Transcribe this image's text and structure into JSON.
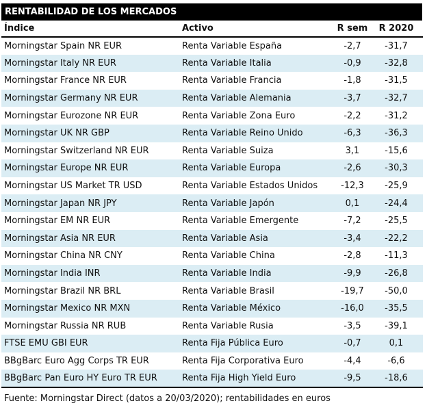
{
  "title": "RENTABILIDAD DE LOS MERCADOS",
  "footnote": "Fuente: Morningstar Direct (datos a 20/03/2020); rentabilidades en euros",
  "colors": {
    "title_bar_bg": "#000000",
    "title_bar_text": "#ffffff",
    "row_stripe": "#dbedf4",
    "rule_lines": "#000000",
    "body_text": "#111111"
  },
  "chart_data": {
    "type": "table",
    "title": "RENTABILIDAD DE LOS MERCADOS",
    "columns": [
      "Índice",
      "Activo",
      "R sem",
      "R 2020"
    ],
    "rows": [
      [
        "Morningstar Spain NR EUR",
        "Renta Variable España",
        "-2,7",
        "-31,7"
      ],
      [
        "Morningstar Italy NR EUR",
        "Renta Variable Italia",
        "-0,9",
        "-32,8"
      ],
      [
        "Morningstar France NR EUR",
        "Renta Variable Francia",
        "-1,8",
        "-31,5"
      ],
      [
        "Morningstar Germany NR EUR",
        "Renta Variable Alemania",
        "-3,7",
        "-32,7"
      ],
      [
        "Morningstar Eurozone NR EUR",
        "Renta Variable Zona Euro",
        "-2,2",
        "-31,2"
      ],
      [
        "Morningstar UK NR GBP",
        "Renta Variable Reino Unido",
        "-6,3",
        "-36,3"
      ],
      [
        "Morningstar Switzerland NR EUR",
        "Renta Variable Suiza",
        "3,1",
        "-15,6"
      ],
      [
        "Morningstar Europe NR EUR",
        "Renta Variable Europa",
        "-2,6",
        "-30,3"
      ],
      [
        "Morningstar US Market TR USD",
        "Renta Variable Estados Unidos",
        "-12,3",
        "-25,9"
      ],
      [
        "Morningstar Japan NR JPY",
        "Renta Variable Japón",
        "0,1",
        "-24,4"
      ],
      [
        "Morningstar EM NR EUR",
        "Renta Variable Emergente",
        "-7,2",
        "-25,5"
      ],
      [
        "Morningstar Asia NR EUR",
        "Renta Variable Asia",
        "-3,4",
        "-22,2"
      ],
      [
        "Morningstar China NR CNY",
        "Renta Variable China",
        "-2,8",
        "-11,3"
      ],
      [
        "Morningstar India INR",
        "Renta Variable India",
        "-9,9",
        "-26,8"
      ],
      [
        "Morningstar Brazil NR BRL",
        "Renta Variable Brasil",
        "-19,7",
        "-50,0"
      ],
      [
        "Morningstar Mexico NR MXN",
        "Renta Variable México",
        "-16,0",
        "-35,5"
      ],
      [
        "Morningstar Russia NR RUB",
        "Renta Variable Rusia",
        "-3,5",
        "-39,1"
      ],
      [
        "FTSE EMU GBI EUR",
        "Renta Fija Pública Euro",
        "-0,7",
        "0,1"
      ],
      [
        "BBgBarc Euro Agg Corps TR EUR",
        "Renta Fija Corporativa Euro",
        "-4,4",
        "-6,6"
      ],
      [
        "BBgBarc Pan Euro HY Euro TR EUR",
        "Renta Fija High Yield Euro",
        "-9,5",
        "-18,6"
      ]
    ],
    "footnote": "Fuente: Morningstar Direct (datos a 20/03/2020); rentabilidades en euros",
    "layout": {
      "striped_rows": "even",
      "numeric_columns_alignment": "center",
      "header_rule": true,
      "bottom_rule": true
    }
  }
}
